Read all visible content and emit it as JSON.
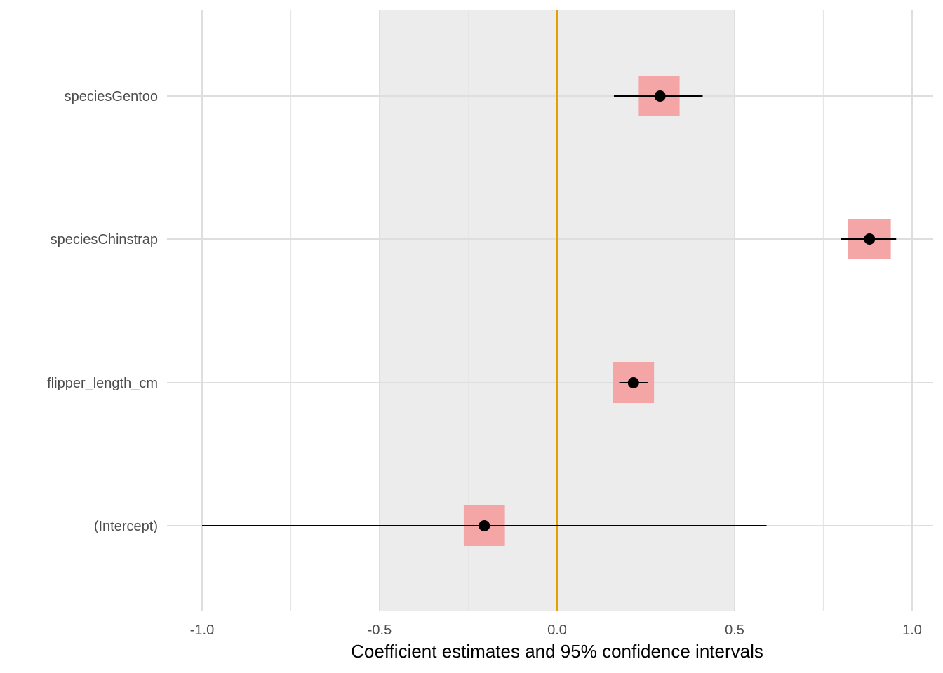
{
  "chart_data": {
    "type": "coefficient-plot",
    "xlabel": "Coefficient estimates and 95% confidence intervals",
    "xlim": [
      -1.0,
      1.0
    ],
    "x_ticks": [
      -1.0,
      -0.5,
      0.0,
      0.5,
      1.0
    ],
    "x_tick_labels": [
      "-1.0",
      "-0.5",
      "0.0",
      "0.5",
      "1.0"
    ],
    "reference_line": {
      "x": 0.0,
      "color": "#e69f00"
    },
    "shaded_region": {
      "x_from": -0.5,
      "x_to": 0.5,
      "color": "#ececec"
    },
    "grid": true,
    "colors": {
      "estimate_box": "#f4a6a6",
      "point": "#000000",
      "ci_line": "#000000"
    },
    "categories": [
      "speciesGentoo",
      "speciesChinstrap",
      "flipper_length_cm",
      "(Intercept)"
    ],
    "estimates": [
      {
        "term": "speciesGentoo",
        "estimate": 0.29,
        "ci_low": 0.16,
        "ci_high": 0.41,
        "box_low": 0.23,
        "box_high": 0.345
      },
      {
        "term": "speciesChinstrap",
        "estimate": 0.88,
        "ci_low": 0.8,
        "ci_high": 0.955,
        "box_low": 0.82,
        "box_high": 0.94
      },
      {
        "term": "flipper_length_cm",
        "estimate": 0.215,
        "ci_low": 0.175,
        "ci_high": 0.255,
        "box_low": 0.157,
        "box_high": 0.273
      },
      {
        "term": "(Intercept)",
        "estimate": -0.205,
        "ci_low": -1.0,
        "ci_high": 0.59,
        "box_low": -0.263,
        "box_high": -0.147
      }
    ]
  }
}
